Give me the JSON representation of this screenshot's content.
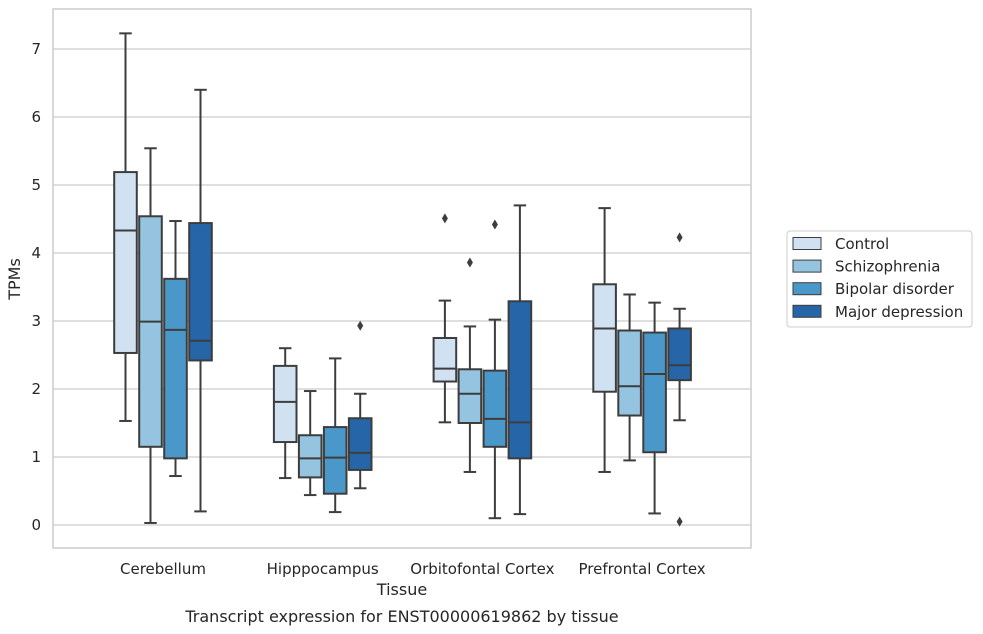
{
  "chart_data": {
    "type": "box",
    "title": "Transcript expression for ENST00000619862 by tissue",
    "xlabel": "Tissue",
    "ylabel": "TPMs",
    "categories": [
      "Cerebellum",
      "Hipppocampus",
      "Orbitofontal Cortex",
      "Prefrontal Cortex"
    ],
    "yticks": [
      "0",
      "1",
      "2",
      "3",
      "4",
      "5",
      "6",
      "7"
    ],
    "ylim": [
      -0.33,
      7.6
    ],
    "grid": "horizontal",
    "legend_position": "right",
    "series": [
      {
        "name": "Control",
        "color": "#d0e1f2",
        "boxes": [
          {
            "min": 1.53,
            "q1": 2.53,
            "median": 4.33,
            "q3": 5.19,
            "max": 7.23,
            "outliers": []
          },
          {
            "min": 0.69,
            "q1": 1.22,
            "median": 1.81,
            "q3": 2.34,
            "max": 2.6,
            "outliers": []
          },
          {
            "min": 1.51,
            "q1": 2.11,
            "median": 2.3,
            "q3": 2.75,
            "max": 3.3,
            "outliers": [
              4.51
            ]
          },
          {
            "min": 0.78,
            "q1": 1.96,
            "median": 2.89,
            "q3": 3.54,
            "max": 4.66,
            "outliers": []
          }
        ]
      },
      {
        "name": "Schizophrenia",
        "color": "#94c4df",
        "boxes": [
          {
            "min": 0.03,
            "q1": 1.15,
            "median": 2.99,
            "q3": 4.54,
            "max": 5.54,
            "outliers": []
          },
          {
            "min": 0.44,
            "q1": 0.7,
            "median": 0.98,
            "q3": 1.32,
            "max": 1.97,
            "outliers": []
          },
          {
            "min": 0.78,
            "q1": 1.5,
            "median": 1.93,
            "q3": 2.29,
            "max": 2.92,
            "outliers": [
              3.86
            ]
          },
          {
            "min": 0.95,
            "q1": 1.61,
            "median": 2.04,
            "q3": 2.86,
            "max": 3.39,
            "outliers": []
          }
        ]
      },
      {
        "name": "Bipolar disorder",
        "color": "#4a98c9",
        "boxes": [
          {
            "min": 0.72,
            "q1": 0.98,
            "median": 2.87,
            "q3": 3.62,
            "max": 4.47,
            "outliers": []
          },
          {
            "min": 0.19,
            "q1": 0.46,
            "median": 0.99,
            "q3": 1.44,
            "max": 2.45,
            "outliers": []
          },
          {
            "min": 0.1,
            "q1": 1.15,
            "median": 1.56,
            "q3": 2.27,
            "max": 3.02,
            "outliers": [
              4.42
            ]
          },
          {
            "min": 0.17,
            "q1": 1.07,
            "median": 2.22,
            "q3": 2.83,
            "max": 3.27,
            "outliers": []
          }
        ]
      },
      {
        "name": "Major depression",
        "color": "#2565a8",
        "boxes": [
          {
            "min": 0.2,
            "q1": 2.42,
            "median": 2.71,
            "q3": 4.44,
            "max": 6.4,
            "outliers": []
          },
          {
            "min": 0.54,
            "q1": 0.81,
            "median": 1.06,
            "q3": 1.57,
            "max": 1.93,
            "outliers": [
              2.93
            ]
          },
          {
            "min": 0.16,
            "q1": 0.98,
            "median": 1.51,
            "q3": 3.29,
            "max": 4.7,
            "outliers": []
          },
          {
            "min": 1.54,
            "q1": 2.13,
            "median": 2.35,
            "q3": 2.89,
            "max": 3.18,
            "outliers": [
              4.23,
              0.05
            ]
          }
        ]
      }
    ]
  }
}
